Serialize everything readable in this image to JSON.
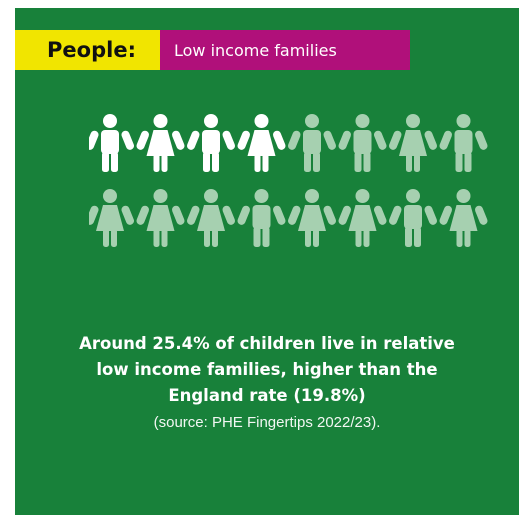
{
  "header": {
    "category": "People:",
    "topic": "Low income families"
  },
  "figures": {
    "total": 16,
    "highlighted": 4,
    "highlight_color": "#ffffff",
    "dim_color": "#a6d0b0",
    "icon_pattern": [
      "boy-icon",
      "girl-icon",
      "boy-icon",
      "girl-icon",
      "boy-icon",
      "boy-icon",
      "girl-icon",
      "boy-icon",
      "girl-icon",
      "girl-icon",
      "girl-icon",
      "boy-icon",
      "girl-icon",
      "girl-icon",
      "boy-icon",
      "girl-icon"
    ]
  },
  "statistic": {
    "line1": "Around 25.4% of children live in relative",
    "line2": "low income families, higher than the",
    "line3": "England rate (19.8%)",
    "source": "(source: PHE Fingertips 2022/23)."
  },
  "colors": {
    "background": "#18813a",
    "category_bg": "#f1e500",
    "topic_bg": "#b0107a"
  }
}
